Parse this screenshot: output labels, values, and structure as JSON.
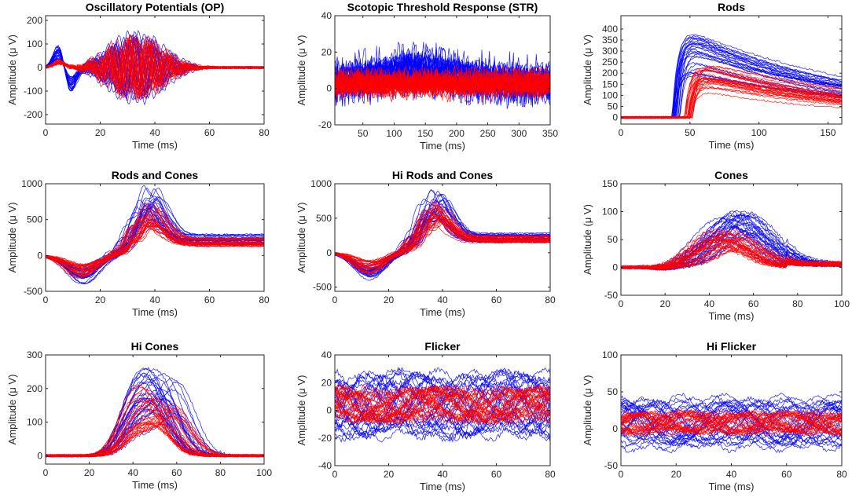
{
  "figure": {
    "background": "#ffffff"
  },
  "chart_data": [
    {
      "type": "line",
      "title": "Oscillatory Potentials (OP)",
      "xlabel": "Time (ms)",
      "ylabel": "Amplitude (μ V)",
      "xlim": [
        0,
        80
      ],
      "ylim": [
        -240,
        220
      ],
      "xticks": [
        0,
        20,
        40,
        60,
        80
      ],
      "yticks": [
        -200,
        -100,
        0,
        100,
        200
      ],
      "series": [
        {
          "name": "blue traces",
          "color": "#0000ff",
          "count": 28
        },
        {
          "name": "red traces",
          "color": "#ff0000",
          "count": 28
        }
      ],
      "shape": "op"
    },
    {
      "type": "line",
      "title": "Scotopic Threshold Response (STR)",
      "xlabel": "Time (ms)",
      "ylabel": "Amplitude (μ V)",
      "xlim": [
        5,
        350
      ],
      "ylim": [
        -20,
        40
      ],
      "xticks": [
        50,
        100,
        150,
        200,
        250,
        300,
        350
      ],
      "yticks": [
        -20,
        0,
        20,
        40
      ],
      "series": [
        {
          "name": "blue traces",
          "color": "#0000ff",
          "count": 28
        },
        {
          "name": "red traces",
          "color": "#ff0000",
          "count": 28
        }
      ],
      "shape": "str"
    },
    {
      "type": "line",
      "title": "Rods",
      "xlabel": "Time (ms)",
      "ylabel": "Amplitude (μ V)",
      "xlim": [
        0,
        160
      ],
      "ylim": [
        -30,
        460
      ],
      "xticks": [
        0,
        50,
        100,
        150
      ],
      "yticks": [
        0,
        50,
        100,
        150,
        200,
        250,
        300,
        350,
        400
      ],
      "series": [
        {
          "name": "blue traces",
          "color": "#0000ff",
          "count": 28
        },
        {
          "name": "red traces",
          "color": "#ff0000",
          "count": 28
        }
      ],
      "shape": "rods"
    },
    {
      "type": "line",
      "title": "Rods and Cones",
      "xlabel": "Time (ms)",
      "ylabel": "Amplitude (μ V)",
      "xlim": [
        0,
        80
      ],
      "ylim": [
        -500,
        1000
      ],
      "xticks": [
        0,
        20,
        40,
        60,
        80
      ],
      "yticks": [
        -500,
        0,
        500,
        1000
      ],
      "series": [
        {
          "name": "blue traces",
          "color": "#0000ff",
          "count": 28
        },
        {
          "name": "red traces",
          "color": "#ff0000",
          "count": 28
        }
      ],
      "shape": "rc"
    },
    {
      "type": "line",
      "title": "Hi Rods and Cones",
      "xlabel": "Time (ms)",
      "ylabel": "Amplitude (μ V)",
      "xlim": [
        0,
        80
      ],
      "ylim": [
        -560,
        1000
      ],
      "xticks": [
        0,
        20,
        40,
        60,
        80
      ],
      "yticks": [
        -500,
        0,
        500,
        1000
      ],
      "series": [
        {
          "name": "blue traces",
          "color": "#0000ff",
          "count": 28
        },
        {
          "name": "red traces",
          "color": "#ff0000",
          "count": 28
        }
      ],
      "shape": "hrc"
    },
    {
      "type": "line",
      "title": "Cones",
      "xlabel": "Time (ms)",
      "ylabel": "Amplitude (μ V)",
      "xlim": [
        0,
        100
      ],
      "ylim": [
        -50,
        150
      ],
      "xticks": [
        0,
        20,
        40,
        60,
        80,
        100
      ],
      "yticks": [
        -50,
        0,
        50,
        100,
        150
      ],
      "series": [
        {
          "name": "blue traces",
          "color": "#0000ff",
          "count": 28
        },
        {
          "name": "red traces",
          "color": "#ff0000",
          "count": 28
        }
      ],
      "shape": "cones"
    },
    {
      "type": "line",
      "title": "Hi Cones",
      "xlabel": "Time (ms)",
      "ylabel": "Amplitude (μ V)",
      "xlim": [
        0,
        100
      ],
      "ylim": [
        -25,
        300
      ],
      "xticks": [
        0,
        20,
        40,
        60,
        80,
        100
      ],
      "yticks": [
        0,
        100,
        200,
        300
      ],
      "series": [
        {
          "name": "blue traces",
          "color": "#0000ff",
          "count": 28
        },
        {
          "name": "red traces",
          "color": "#ff0000",
          "count": 28
        }
      ],
      "shape": "hicones"
    },
    {
      "type": "line",
      "title": "Flicker",
      "xlabel": "Time (ms)",
      "ylabel": "Amplitude (μ V)",
      "xlim": [
        0,
        80
      ],
      "ylim": [
        -40,
        40
      ],
      "xticks": [
        0,
        20,
        40,
        60,
        80
      ],
      "yticks": [
        -40,
        -20,
        0,
        20,
        40
      ],
      "series": [
        {
          "name": "blue traces",
          "color": "#0000ff",
          "count": 28
        },
        {
          "name": "red traces",
          "color": "#ff0000",
          "count": 28
        }
      ],
      "shape": "flicker"
    },
    {
      "type": "line",
      "title": "Hi Flicker",
      "xlabel": "Time (ms)",
      "ylabel": "Amplitude (μ V)",
      "xlim": [
        0,
        80
      ],
      "ylim": [
        -50,
        100
      ],
      "xticks": [
        0,
        20,
        40,
        60,
        80
      ],
      "yticks": [
        -50,
        0,
        50,
        100
      ],
      "series": [
        {
          "name": "blue traces",
          "color": "#0000ff",
          "count": 28
        },
        {
          "name": "red traces",
          "color": "#ff0000",
          "count": 28
        }
      ],
      "shape": "hiflicker"
    }
  ]
}
